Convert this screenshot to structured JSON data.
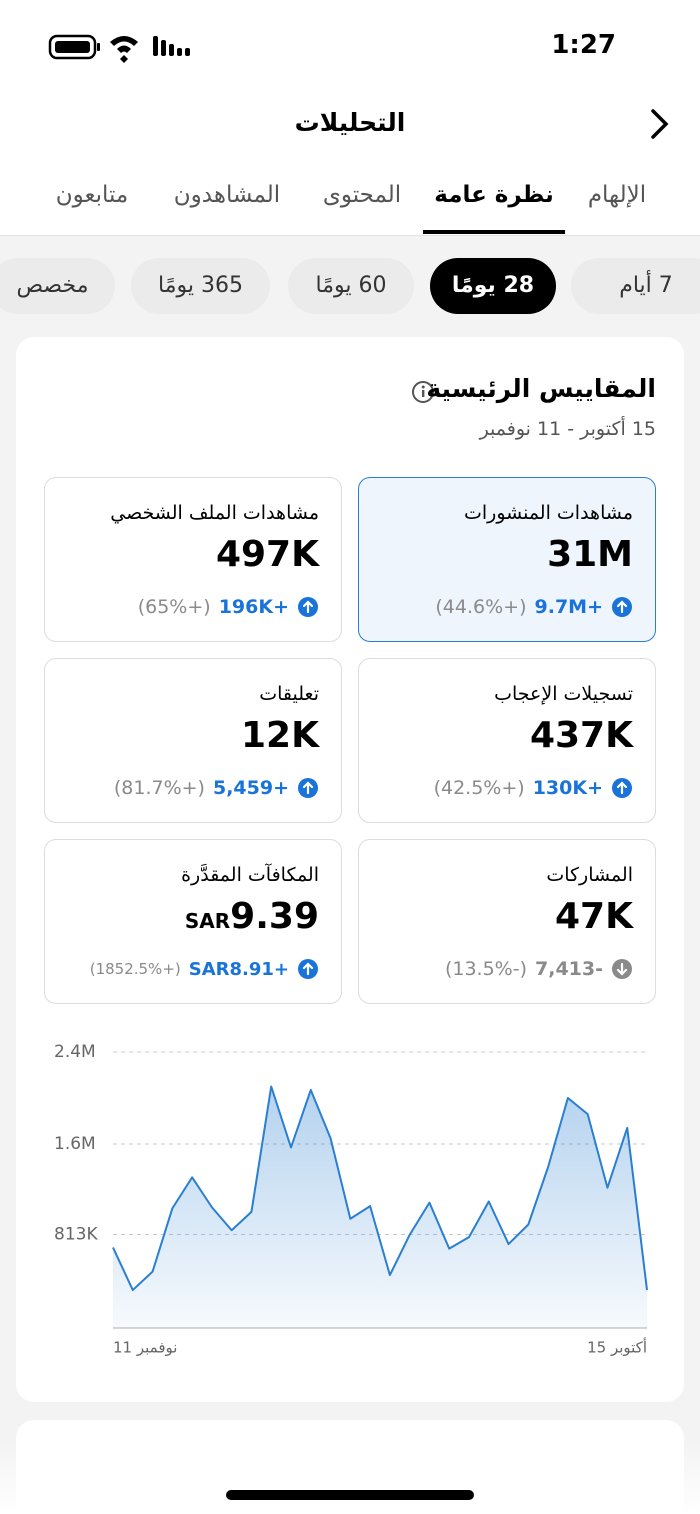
{
  "status_bar": {
    "time": "1:27"
  },
  "header": {
    "title": "التحليلات"
  },
  "tabs": [
    {
      "label": "الإلهام",
      "selected": false
    },
    {
      "label": "نظرة عامة",
      "selected": true
    },
    {
      "label": "المحتوى",
      "selected": false
    },
    {
      "label": "المشاهدون",
      "selected": false
    },
    {
      "label": "متابعون",
      "selected": false
    }
  ],
  "ranges": [
    {
      "label": "7 أيام",
      "selected": false
    },
    {
      "label": "28 يومًا",
      "selected": true
    },
    {
      "label": "60 يومًا",
      "selected": false
    },
    {
      "label": "365 يومًا",
      "selected": false
    },
    {
      "label": "مخصص",
      "selected": false
    }
  ],
  "section": {
    "title": "المقاييس الرئيسية",
    "date": "15 أكتوبر - 11 نوفمبر"
  },
  "metrics": [
    {
      "label": "مشاهدات المنشورات",
      "value": "31M",
      "change": "+9.7M",
      "percent": "(+44.6%)",
      "trend": "up",
      "selected": true
    },
    {
      "label": "مشاهدات الملف الشخصي",
      "value": "497K",
      "change": "+196K",
      "percent": "(+65%)",
      "trend": "up",
      "selected": false
    },
    {
      "label": "تسجيلات الإعجاب",
      "value": "437K",
      "change": "+130K",
      "percent": "(+42.5%)",
      "trend": "up",
      "selected": false
    },
    {
      "label": "تعليقات",
      "value": "12K",
      "change": "+5,459",
      "percent": "(+81.7%)",
      "trend": "up",
      "selected": false
    },
    {
      "label": "المشاركات",
      "value": "47K",
      "change": "-7,413",
      "percent": "(-13.5%)",
      "trend": "down",
      "selected": false
    },
    {
      "label": "المكافآت المقدَّرة",
      "currency": "SAR",
      "value": "9.39",
      "change": "+SAR8.91",
      "percent": "(+1852.5%)",
      "trend": "up",
      "selected": false
    }
  ],
  "chart_data": {
    "type": "line",
    "color": "#2a7fd0",
    "grid": true,
    "categories": [
      "11 نوفمبر",
      null,
      null,
      null,
      null,
      null,
      null,
      null,
      null,
      null,
      null,
      null,
      null,
      null,
      null,
      null,
      null,
      null,
      null,
      null,
      null,
      null,
      null,
      null,
      null,
      null,
      null,
      "15 أكتوبر"
    ],
    "values": [
      700000,
      330000,
      490000,
      1040000,
      1310000,
      1050000,
      850000,
      1010000,
      2100000,
      1570000,
      2070000,
      1650000,
      950000,
      1060000,
      460000,
      810000,
      1090000,
      690000,
      790000,
      1100000,
      730000,
      900000,
      1400000,
      2000000,
      1860000,
      1220000,
      1740000,
      330000
    ],
    "ylim": [
      0,
      2400000
    ],
    "yticks": [
      {
        "value": 813000,
        "label": "813K"
      },
      {
        "value": 1600000,
        "label": "1.6M"
      },
      {
        "value": 2400000,
        "label": "2.4M"
      }
    ]
  }
}
